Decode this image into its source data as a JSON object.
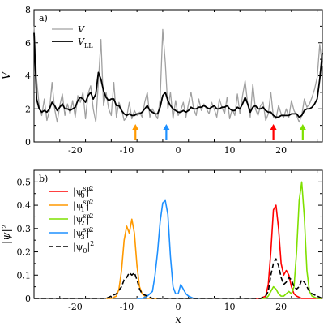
{
  "chart_data": [
    {
      "type": "line",
      "panel_label": "a)",
      "xlabel": "",
      "ylabel": "V",
      "xlim": [
        -28,
        28
      ],
      "ylim": [
        0,
        8
      ],
      "xticks": [
        -20,
        -10,
        0,
        10,
        20
      ],
      "yticks": [
        0,
        2,
        4,
        6,
        8
      ],
      "legend_placement": "top-left",
      "series": [
        {
          "name": "V",
          "color": "#a0a0a0",
          "x": [
            -28,
            -27.5,
            -27,
            -26.5,
            -26,
            -25.5,
            -25,
            -24.5,
            -24,
            -23.5,
            -23,
            -22.5,
            -22,
            -21.5,
            -21,
            -20.5,
            -20,
            -19.5,
            -19,
            -18.5,
            -18,
            -17.5,
            -17,
            -16.5,
            -16,
            -15.5,
            -15,
            -14.5,
            -14,
            -13.5,
            -13,
            -12.5,
            -12,
            -11.5,
            -11,
            -10.5,
            -10,
            -9.5,
            -9,
            -8.5,
            -8,
            -7.5,
            -7,
            -6.5,
            -6,
            -5.5,
            -5,
            -4.5,
            -4,
            -3.5,
            -3,
            -2.5,
            -2,
            -1.5,
            -1,
            -0.5,
            0,
            0.5,
            1,
            1.5,
            2,
            2.5,
            3,
            3.5,
            4,
            4.5,
            5,
            5.5,
            6,
            6.5,
            7,
            7.5,
            8,
            8.5,
            9,
            9.5,
            10,
            10.5,
            11,
            11.5,
            12,
            12.5,
            13,
            13.5,
            14,
            14.5,
            15,
            15.5,
            16,
            16.5,
            17,
            17.5,
            18,
            18.5,
            19,
            19.5,
            20,
            20.5,
            21,
            21.5,
            22,
            22.5,
            23,
            23.5,
            24,
            24.5,
            25,
            25.5,
            26,
            26.5,
            27,
            27.5,
            28
          ],
          "y": [
            7.0,
            3.8,
            2.2,
            1.6,
            2.6,
            1.3,
            1.9,
            3.6,
            2.0,
            1.2,
            2.2,
            2.9,
            1.6,
            2.3,
            1.7,
            2.5,
            1.5,
            2.8,
            2.4,
            3.0,
            1.4,
            2.9,
            3.4,
            2.0,
            1.2,
            3.6,
            6.2,
            2.2,
            3.0,
            2.0,
            1.6,
            3.6,
            1.5,
            2.4,
            2.0,
            1.3,
            1.5,
            2.4,
            1.4,
            1.9,
            1.6,
            1.8,
            1.5,
            2.4,
            3.0,
            1.5,
            2.0,
            1.7,
            1.4,
            2.6,
            6.8,
            4.8,
            2.0,
            3.0,
            1.4,
            2.5,
            1.6,
            1.9,
            2.4,
            1.5,
            2.3,
            3.0,
            2.0,
            1.6,
            2.6,
            1.9,
            2.3,
            2.0,
            1.7,
            2.4,
            2.0,
            1.5,
            2.6,
            2.1,
            1.7,
            2.7,
            1.4,
            2.0,
            1.6,
            2.9,
            1.7,
            2.8,
            3.7,
            2.3,
            1.5,
            3.5,
            2.0,
            1.6,
            2.2,
            2.4,
            1.3,
            1.7,
            3.0,
            1.5,
            1.4,
            2.2,
            1.7,
            1.5,
            2.0,
            1.5,
            2.5,
            1.9,
            1.6,
            1.2,
            1.6,
            2.6,
            2.1,
            2.3,
            2.7,
            3.2,
            3.9,
            5.9,
            4.6
          ]
        },
        {
          "name": "V_LL",
          "color": "#000000",
          "x": [
            -28,
            -27.5,
            -27,
            -26.5,
            -26,
            -25.5,
            -25,
            -24.5,
            -24,
            -23.5,
            -23,
            -22.5,
            -22,
            -21.5,
            -21,
            -20.5,
            -20,
            -19.5,
            -19,
            -18.5,
            -18,
            -17.5,
            -17,
            -16.5,
            -16,
            -15.5,
            -15,
            -14.5,
            -14,
            -13.5,
            -13,
            -12.5,
            -12,
            -11.5,
            -11,
            -10.5,
            -10,
            -9.5,
            -9,
            -8.5,
            -8,
            -7.5,
            -7,
            -6.5,
            -6,
            -5.5,
            -5,
            -4.5,
            -4,
            -3.5,
            -3,
            -2.5,
            -2,
            -1.5,
            -1,
            -0.5,
            0,
            0.5,
            1,
            1.5,
            2,
            2.5,
            3,
            3.5,
            4,
            4.5,
            5,
            5.5,
            6,
            6.5,
            7,
            7.5,
            8,
            8.5,
            9,
            9.5,
            10,
            10.5,
            11,
            11.5,
            12,
            12.5,
            13,
            13.5,
            14,
            14.5,
            15,
            15.5,
            16,
            16.5,
            17,
            17.5,
            18,
            18.5,
            19,
            19.5,
            20,
            20.5,
            21,
            21.5,
            22,
            22.5,
            23,
            23.5,
            24,
            24.5,
            25,
            25.5,
            26,
            26.5,
            27,
            27.5,
            28
          ],
          "y": [
            6.6,
            2.6,
            2.0,
            1.8,
            1.9,
            1.8,
            2.0,
            2.4,
            2.2,
            1.9,
            2.1,
            2.3,
            2.0,
            2.0,
            1.9,
            2.0,
            2.1,
            2.5,
            2.7,
            2.6,
            2.4,
            2.8,
            3.0,
            2.6,
            2.9,
            4.2,
            3.8,
            3.1,
            2.7,
            2.5,
            2.6,
            2.6,
            2.2,
            2.2,
            1.9,
            1.7,
            1.6,
            1.7,
            1.6,
            1.6,
            1.7,
            1.7,
            1.8,
            2.0,
            2.2,
            1.9,
            1.8,
            1.7,
            1.7,
            2.1,
            2.8,
            3.0,
            2.5,
            2.2,
            2.0,
            1.9,
            1.8,
            1.8,
            1.9,
            1.8,
            1.9,
            2.1,
            2.0,
            2.0,
            2.1,
            2.1,
            2.2,
            2.1,
            2.0,
            2.1,
            2.2,
            2.0,
            2.0,
            2.1,
            2.1,
            2.2,
            2.0,
            1.9,
            1.9,
            2.1,
            2.0,
            2.3,
            2.7,
            2.3,
            1.8,
            2.1,
            2.2,
            2.0,
            2.0,
            2.1,
            1.9,
            1.8,
            1.8,
            1.6,
            1.5,
            1.5,
            1.6,
            1.6,
            1.6,
            1.6,
            1.7,
            1.7,
            1.7,
            1.5,
            1.6,
            1.9,
            2.0,
            2.0,
            2.1,
            2.3,
            2.6,
            3.8,
            5.4
          ]
        }
      ],
      "arrows": [
        {
          "x": -8.3,
          "color": "#ff9900"
        },
        {
          "x": -2.3,
          "color": "#1e90ff"
        },
        {
          "x": 18.5,
          "color": "#ff0000"
        },
        {
          "x": 24.2,
          "color": "#7fe000"
        }
      ]
    },
    {
      "type": "line",
      "panel_label": "b)",
      "xlabel": "x",
      "ylabel": "|ψ|²",
      "xlim": [
        -28,
        28
      ],
      "ylim": [
        0,
        0.55
      ],
      "xticks": [
        -20,
        -10,
        0,
        10,
        20
      ],
      "yticks": [
        0,
        0.1,
        0.2,
        0.3,
        0.4,
        0.5
      ],
      "legend_placement": "left",
      "series": [
        {
          "name": "|ψ0sp|2",
          "base": "|ψ",
          "sub": "0",
          "sup": "sp",
          "tail": "|2",
          "color": "#ff0000",
          "dash": false,
          "x": [
            15,
            16,
            17,
            17.5,
            18,
            18.5,
            19,
            19.5,
            20,
            20.5,
            21,
            21.5,
            22,
            22.5,
            23,
            24,
            25,
            26,
            27,
            28
          ],
          "y": [
            0,
            0,
            0.01,
            0.06,
            0.2,
            0.38,
            0.4,
            0.3,
            0.15,
            0.1,
            0.12,
            0.1,
            0.05,
            0.02,
            0.01,
            0,
            0,
            0,
            0,
            0
          ]
        },
        {
          "name": "|ψ1sp|2",
          "base": "|ψ",
          "sub": "1",
          "sup": "sp",
          "tail": "|2",
          "color": "#ff9900",
          "dash": false,
          "x": [
            -14,
            -13,
            -12,
            -11.5,
            -11,
            -10.5,
            -10,
            -9.5,
            -9,
            -8.5,
            -8,
            -7.5,
            -7,
            -6,
            -5,
            -4
          ],
          "y": [
            0,
            0,
            0.01,
            0.04,
            0.12,
            0.25,
            0.31,
            0.28,
            0.34,
            0.28,
            0.14,
            0.05,
            0.02,
            0,
            0,
            0
          ]
        },
        {
          "name": "|ψ2sp|2",
          "base": "|ψ",
          "sub": "2",
          "sup": "sp",
          "tail": "|2",
          "color": "#7fe000",
          "dash": false,
          "x": [
            16,
            17,
            17.5,
            18,
            18.5,
            19,
            19.5,
            20,
            20.5,
            21,
            21.5,
            22,
            22.5,
            23,
            23.5,
            24,
            24.5,
            25,
            25.5,
            26,
            27,
            28
          ],
          "y": [
            0,
            0,
            0.01,
            0.03,
            0.05,
            0.04,
            0.02,
            0.01,
            0.01,
            0.02,
            0.03,
            0.02,
            0.05,
            0.2,
            0.42,
            0.5,
            0.35,
            0.12,
            0.03,
            0.01,
            0,
            0
          ]
        },
        {
          "name": "|ψ3sp|2",
          "base": "|ψ",
          "sub": "3",
          "sup": "sp",
          "tail": "|2",
          "color": "#1e90ff",
          "dash": false,
          "x": [
            -8,
            -7,
            -6,
            -5,
            -4.5,
            -4,
            -3.5,
            -3,
            -2.5,
            -2,
            -1.5,
            -1,
            -0.5,
            0,
            0.5,
            1,
            1.5,
            2,
            3,
            4
          ],
          "y": [
            0,
            0,
            0.01,
            0.03,
            0.1,
            0.2,
            0.33,
            0.41,
            0.42,
            0.36,
            0.18,
            0.05,
            0.02,
            0.02,
            0.06,
            0.04,
            0.02,
            0.01,
            0,
            0
          ]
        },
        {
          "name": "|ψ0|2",
          "base": "|ψ",
          "sub": "0",
          "sup": "",
          "tail": "|2",
          "color": "#000000",
          "dash": true,
          "x": [
            -28,
            -16,
            -14,
            -13,
            -12,
            -11,
            -10.5,
            -10,
            -9.5,
            -9,
            -8.5,
            -8,
            -7.5,
            -7,
            -6,
            -5,
            -4,
            0,
            10,
            14,
            16,
            17,
            17.5,
            18,
            18.5,
            19,
            19.5,
            20,
            20.5,
            21,
            21.5,
            22,
            22.5,
            23,
            23.5,
            24,
            24.5,
            25,
            25.5,
            26,
            27,
            28
          ],
          "y": [
            0,
            0,
            0,
            0.01,
            0.02,
            0.05,
            0.08,
            0.09,
            0.11,
            0.1,
            0.11,
            0.08,
            0.04,
            0.02,
            0.01,
            0,
            0,
            0,
            0,
            0,
            0,
            0.01,
            0.03,
            0.1,
            0.15,
            0.17,
            0.14,
            0.09,
            0.06,
            0.07,
            0.09,
            0.08,
            0.05,
            0.04,
            0.05,
            0.08,
            0.07,
            0.05,
            0.03,
            0.02,
            0.01,
            0
          ]
        }
      ]
    }
  ]
}
